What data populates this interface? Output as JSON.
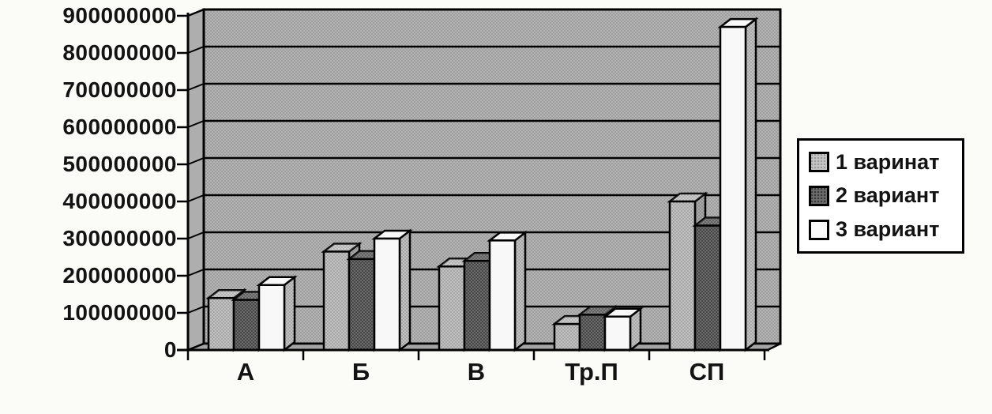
{
  "chart_data": {
    "type": "bar",
    "style": "3d-clustered",
    "title": "",
    "xlabel": "",
    "ylabel": "",
    "categories": [
      "А",
      "Б",
      "В",
      "Тр.П",
      "СП"
    ],
    "series": [
      {
        "name": "1 варинат",
        "values": [
          140000000,
          265000000,
          225000000,
          70000000,
          400000000
        ]
      },
      {
        "name": "2 вариант",
        "values": [
          135000000,
          245000000,
          240000000,
          95000000,
          335000000
        ]
      },
      {
        "name": "3 вариант",
        "values": [
          175000000,
          300000000,
          295000000,
          90000000,
          870000000
        ]
      }
    ],
    "ylim": [
      0,
      900000000
    ],
    "ytick_step": 100000000,
    "ytick_labels": [
      "900000000",
      "800000000",
      "700000000",
      "600000000",
      "500000000",
      "400000000",
      "300000000",
      "200000000",
      "100000000",
      "0"
    ],
    "grid": true,
    "legend_position": "right"
  },
  "colors": {
    "series1": "#c2c2c2",
    "series1_dots": "#9d9d9d",
    "series2": "#6b6b6b",
    "series2_dots": "#3a3a3a",
    "series3": "#f8f8f8",
    "wall": "#b4b4b4",
    "wall_dots": "#989898",
    "side_wall": "#aeaeae",
    "floor": "#a5a5a5",
    "line": "#000000",
    "page_bg": "#fbfbf8",
    "legend_bg": "#ffffff",
    "text": "#131313"
  }
}
